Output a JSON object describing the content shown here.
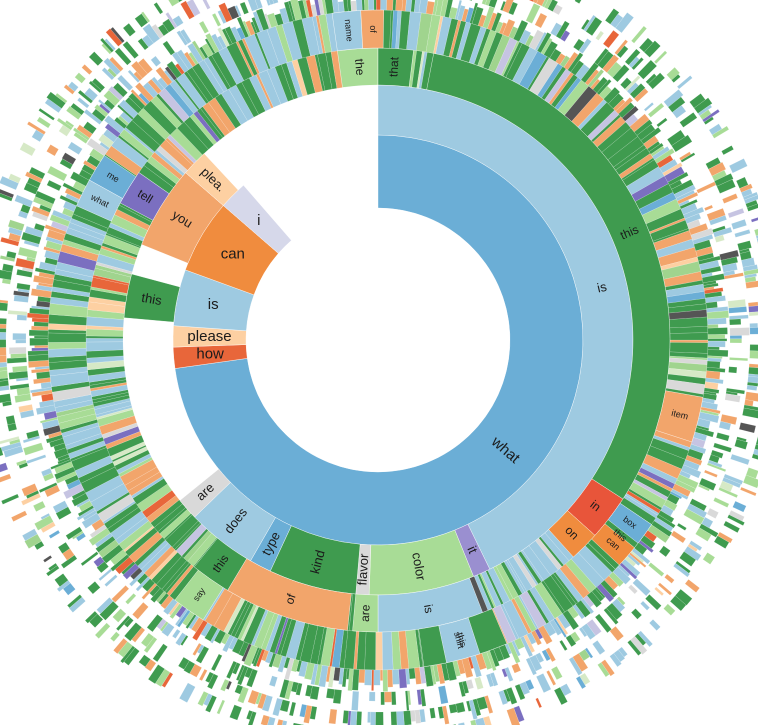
{
  "palette": [
    "#3f9b4f",
    "#a0d48e",
    "#f2a56b",
    "#e8663a",
    "#9ecae1",
    "#6baed6",
    "#7b6fc0",
    "#c6c4e2",
    "#fdd0a2",
    "#d9d9d9",
    "#555555",
    "#d6e9c6"
  ],
  "rings": [
    {
      "name": "first-word",
      "segments": [
        {
          "label": "what",
          "color": "#6baed6",
          "start": 0,
          "end": 262
        },
        {
          "label": "how",
          "color": "#e8663a",
          "start": 262,
          "end": 268
        },
        {
          "label": "please",
          "color": "#fdd0a2",
          "start": 268,
          "end": 274
        },
        {
          "label": "is",
          "color": "#9ecae1",
          "start": 274,
          "end": 290
        },
        {
          "label": "can",
          "color": "#f08c3e",
          "start": 290,
          "end": 311
        },
        {
          "label": "i",
          "color": "#d6d8ea",
          "start": 311,
          "end": 319
        }
      ]
    },
    {
      "name": "second-word",
      "segments": [
        {
          "label": "is",
          "color": "#9ecae1",
          "start": 0,
          "end": 154
        },
        {
          "label": "it",
          "color": "#9a8fd0",
          "start": 154,
          "end": 158
        },
        {
          "label": "color",
          "color": "#a8dc96",
          "start": 158,
          "end": 182
        },
        {
          "label": "flavor",
          "color": "#d9d9d9",
          "start": 182,
          "end": 185
        },
        {
          "label": "kind",
          "color": "#3f9b4f",
          "start": 185,
          "end": 205
        },
        {
          "label": "type",
          "color": "#6baed6",
          "start": 205,
          "end": 210
        },
        {
          "label": "does",
          "color": "#9ecae1",
          "start": 210,
          "end": 226
        },
        {
          "label": "are",
          "color": "#d9d9d9",
          "start": 226,
          "end": 231
        },
        {
          "label": "you",
          "color": "#f2a56b",
          "start": 292,
          "end": 311
        },
        {
          "label": "plea.",
          "color": "#fdd0a2",
          "start": 311,
          "end": 317
        },
        {
          "label": "this",
          "color": "#3f9b4f",
          "start": 275,
          "end": 285
        }
      ]
    },
    {
      "name": "third-word",
      "segments": [
        {
          "label": "this",
          "color": "#3f9b4f",
          "start": 11,
          "end": 123
        },
        {
          "label": "in",
          "color": "#e8553a",
          "start": 123,
          "end": 132
        },
        {
          "label": "on",
          "color": "#f08c3e",
          "start": 132,
          "end": 138
        },
        {
          "label": "is",
          "color": "#9ecae1",
          "start": 159,
          "end": 180
        },
        {
          "label": "are",
          "color": "#a8dc96",
          "start": 180,
          "end": 185
        },
        {
          "label": "of",
          "color": "#f2a56b",
          "start": 186,
          "end": 211
        },
        {
          "label": "this",
          "color": "#3f9b4f",
          "start": 211,
          "end": 219
        },
        {
          "label": "tell",
          "color": "#7b6fc0",
          "start": 298,
          "end": 305
        },
        {
          "label": "the",
          "color": "#a8dc96",
          "start": 352,
          "end": 360
        },
        {
          "label": "that",
          "color": "#3f9b4f",
          "start": 0,
          "end": 7
        }
      ]
    },
    {
      "name": "fourth-word",
      "segments": [
        {
          "label": "this",
          "color": "#3f9b4f",
          "start": 124,
          "end": 134
        },
        {
          "label": "item",
          "color": "#f2a56b",
          "start": 100,
          "end": 108
        },
        {
          "label": "box",
          "color": "#6baed6",
          "start": 124,
          "end": 128
        },
        {
          "label": "can",
          "color": "#f08c3e",
          "start": 129,
          "end": 133
        },
        {
          "label": "this",
          "color": "#3f9b4f",
          "start": 157,
          "end": 172
        },
        {
          "label": "shirt",
          "color": "#9ecae1",
          "start": 162,
          "end": 168
        },
        {
          "label": "say",
          "color": "#a8dc96",
          "start": 212,
          "end": 218
        },
        {
          "label": "what",
          "color": "#9ecae1",
          "start": 294,
          "end": 299
        },
        {
          "label": "me",
          "color": "#6baed6",
          "start": 299,
          "end": 304
        },
        {
          "label": "name",
          "color": "#9ecae1",
          "start": 352,
          "end": 357
        },
        {
          "label": "of",
          "color": "#f2a56b",
          "start": 357,
          "end": 361
        }
      ]
    }
  ]
}
